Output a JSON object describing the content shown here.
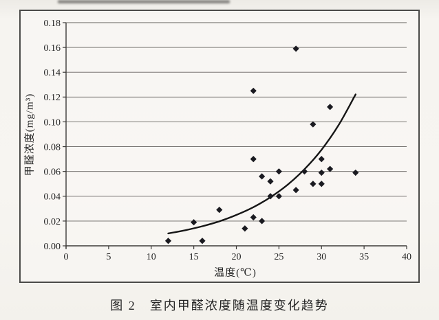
{
  "figure": {
    "caption": "图 2　室内甲醛浓度随温度变化趋势"
  },
  "chart_data": {
    "type": "scatter",
    "title": "",
    "xlabel": "温度(℃)",
    "ylabel": "甲醛浓度(mg/m³)",
    "xlim": [
      0,
      40
    ],
    "ylim": [
      0,
      0.18
    ],
    "x_ticks": [
      0,
      5,
      10,
      15,
      20,
      25,
      30,
      35,
      40
    ],
    "y_ticks": [
      0,
      0.02,
      0.04,
      0.06,
      0.08,
      0.1,
      0.12,
      0.14,
      0.16,
      0.18
    ],
    "grid": "horizontal",
    "legend": "none",
    "marker": "diamond",
    "points": [
      [
        12,
        0.004
      ],
      [
        15,
        0.019
      ],
      [
        16,
        0.004
      ],
      [
        18,
        0.029
      ],
      [
        21,
        0.014
      ],
      [
        22,
        0.023
      ],
      [
        23,
        0.02
      ],
      [
        22,
        0.07
      ],
      [
        22,
        0.125
      ],
      [
        23,
        0.056
      ],
      [
        24,
        0.052
      ],
      [
        24,
        0.04
      ],
      [
        25,
        0.04
      ],
      [
        25,
        0.06
      ],
      [
        27,
        0.045
      ],
      [
        27,
        0.159
      ],
      [
        28,
        0.06
      ],
      [
        29,
        0.05
      ],
      [
        30,
        0.05
      ],
      [
        30,
        0.059
      ],
      [
        31,
        0.062
      ],
      [
        30,
        0.07
      ],
      [
        29,
        0.098
      ],
      [
        31,
        0.112
      ],
      [
        34,
        0.059
      ]
    ],
    "trend_curve": {
      "shape": "exponential",
      "samples": [
        [
          12,
          0.01
        ],
        [
          14,
          0.0126
        ],
        [
          16,
          0.0158
        ],
        [
          18,
          0.0198
        ],
        [
          20,
          0.0249
        ],
        [
          22,
          0.0312
        ],
        [
          24,
          0.0392
        ],
        [
          26,
          0.0492
        ],
        [
          28,
          0.0618
        ],
        [
          30,
          0.0775
        ],
        [
          32,
          0.0973
        ],
        [
          34,
          0.1221
        ]
      ]
    },
    "colors": {
      "marker": "#1a1a20",
      "curve": "#161616",
      "grid": "#64615e",
      "axis": "#3c3a38",
      "text": "#232323"
    }
  }
}
